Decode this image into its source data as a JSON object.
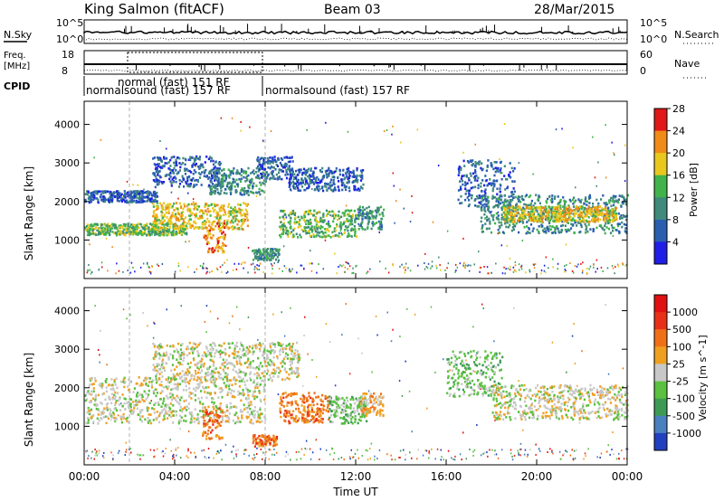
{
  "header": {
    "station": "King Salmon (fitACF)",
    "beam": "Beam 03",
    "date": "28/Mar/2015"
  },
  "top_panels": {
    "nsky_label": "N.Sky",
    "nsearch_label": "N.Search",
    "freq_label_line1": "Freq.",
    "freq_label_line2": "[MHz]",
    "nave_label": "Nave",
    "cpid_label": "CPID",
    "nsky_ticks": [
      "10^5",
      "10^0"
    ],
    "nsearch_ticks": [
      "10^5",
      "10^0"
    ],
    "freq_ticks": [
      "18",
      "8"
    ],
    "nave_ticks": [
      "60",
      "0"
    ],
    "cpid_segments": [
      {
        "label": "normalsound (fast) 157 RF",
        "start": "00:00",
        "end": "08:00"
      },
      {
        "label": "normal (fast) 151 RF",
        "start": "02:00",
        "end": "08:00"
      },
      {
        "label": "normalsound (fast) 157 RF",
        "start": "08:00",
        "end": "24:00"
      }
    ]
  },
  "chart_data": [
    {
      "type": "heatmap",
      "title": "",
      "xlabel": "Time UT",
      "ylabel": "Slant Range [km]",
      "xlim": [
        "00:00",
        "24:00"
      ],
      "ylim": [
        0,
        4600
      ],
      "xticks": [
        "00:00",
        "04:00",
        "08:00",
        "12:00",
        "16:00",
        "20:00",
        "00:00"
      ],
      "yticks": [
        1000,
        2000,
        3000,
        4000
      ],
      "colorbar": {
        "label": "Power [dB]",
        "ticks": [
          "4",
          "8",
          "12",
          "16",
          "20",
          "24",
          "28"
        ],
        "colors": [
          "#1f1fe6",
          "#2a5fb0",
          "#3f8a7a",
          "#41b34a",
          "#e8c81e",
          "#f08a18",
          "#e01818"
        ]
      },
      "bands": [
        {
          "t0": 0.0,
          "t1": 3.2,
          "r0": 2000,
          "r1": 2300,
          "level": 1
        },
        {
          "t0": 0.0,
          "t1": 4.5,
          "r0": 1150,
          "r1": 1450,
          "level": 3
        },
        {
          "t0": 3.0,
          "t1": 7.2,
          "r0": 1300,
          "r1": 2000,
          "level": 4
        },
        {
          "t0": 3.0,
          "t1": 6.0,
          "r0": 2400,
          "r1": 3200,
          "level": 1
        },
        {
          "t0": 5.2,
          "t1": 6.2,
          "r0": 700,
          "r1": 1500,
          "level": 5
        },
        {
          "t0": 5.5,
          "t1": 8.0,
          "r0": 2200,
          "r1": 2900,
          "level": 2
        },
        {
          "t0": 7.6,
          "t1": 9.2,
          "r0": 2600,
          "r1": 3200,
          "level": 1
        },
        {
          "t0": 7.4,
          "t1": 8.6,
          "r0": 500,
          "r1": 800,
          "level": 2
        },
        {
          "t0": 8.6,
          "t1": 12.0,
          "r0": 1100,
          "r1": 1800,
          "level": 3
        },
        {
          "t0": 9.0,
          "t1": 12.3,
          "r0": 2300,
          "r1": 2900,
          "level": 1
        },
        {
          "t0": 12.0,
          "t1": 13.2,
          "r0": 1300,
          "r1": 1900,
          "level": 2
        },
        {
          "t0": 16.5,
          "t1": 19.0,
          "r0": 1900,
          "r1": 3100,
          "level": 1
        },
        {
          "t0": 17.5,
          "t1": 24.0,
          "r0": 1200,
          "r1": 2200,
          "level": 2
        },
        {
          "t0": 18.5,
          "t1": 23.5,
          "r0": 1500,
          "r1": 1900,
          "level": 4
        }
      ]
    },
    {
      "type": "heatmap",
      "title": "",
      "xlabel": "Time UT",
      "ylabel": "Slant Range [km]",
      "xlim": [
        "00:00",
        "24:00"
      ],
      "ylim": [
        0,
        4600
      ],
      "xticks": [
        "00:00",
        "04:00",
        "08:00",
        "12:00",
        "16:00",
        "20:00",
        "00:00"
      ],
      "yticks": [
        1000,
        2000,
        3000,
        4000
      ],
      "colorbar": {
        "label": "Velocity [m s^-1]",
        "ticks": [
          "1000",
          "500",
          "100",
          "25",
          "-25",
          "-100",
          "-500",
          "-1000"
        ],
        "colors": [
          "#2040c0",
          "#4a7fc0",
          "#3d9a55",
          "#5ac040",
          "#c8c8c8",
          "#f0a020",
          "#f07018",
          "#e83018",
          "#e01010"
        ]
      },
      "bands": [
        {
          "t0": 0.0,
          "t1": 8.0,
          "r0": 1100,
          "r1": 2300,
          "level": 4
        },
        {
          "t0": 3.0,
          "t1": 9.5,
          "r0": 2200,
          "r1": 3200,
          "level": 4
        },
        {
          "t0": 5.2,
          "t1": 6.1,
          "r0": 700,
          "r1": 1500,
          "level": 6
        },
        {
          "t0": 7.4,
          "t1": 8.5,
          "r0": 500,
          "r1": 800,
          "level": 6
        },
        {
          "t0": 8.6,
          "t1": 10.8,
          "r0": 1100,
          "r1": 1900,
          "level": 6
        },
        {
          "t0": 10.8,
          "t1": 12.5,
          "r0": 1100,
          "r1": 1800,
          "level": 3
        },
        {
          "t0": 12.2,
          "t1": 13.2,
          "r0": 1300,
          "r1": 1900,
          "level": 5
        },
        {
          "t0": 16.0,
          "t1": 18.5,
          "r0": 1800,
          "r1": 3000,
          "level": 3
        },
        {
          "t0": 18.0,
          "t1": 24.0,
          "r0": 1200,
          "r1": 2100,
          "level": 4
        }
      ]
    }
  ],
  "colors": {
    "axis": "#000000",
    "gridline": "#b0b0b0"
  }
}
